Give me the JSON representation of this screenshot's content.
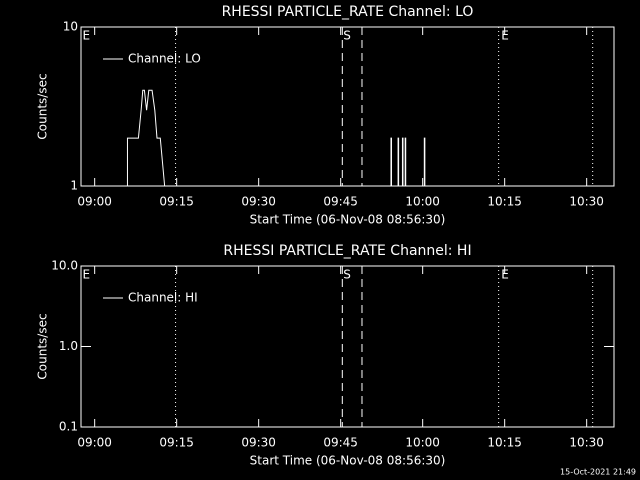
{
  "chart_data": [
    {
      "type": "line",
      "title": "RHESSI PARTICLE_RATE Channel: LO",
      "xlabel": "Start Time (06-Nov-08 08:56:30)",
      "ylabel": "Counts/sec",
      "xlim": [
        537.5,
        635
      ],
      "xticks": [
        {
          "value": 540,
          "label": "09:00"
        },
        {
          "value": 555,
          "label": "09:15"
        },
        {
          "value": 570,
          "label": "09:30"
        },
        {
          "value": 585,
          "label": "09:45"
        },
        {
          "value": 600,
          "label": "10:00"
        },
        {
          "value": 615,
          "label": "10:15"
        },
        {
          "value": 630,
          "label": "10:30"
        }
      ],
      "ylim": [
        1,
        10
      ],
      "yticks": [
        1,
        10
      ],
      "log_y": true,
      "legend": "top-left",
      "series": [
        {
          "name": "Channel: LO",
          "color": "#ffffff",
          "x": [
            537.5,
            546.0,
            546.0,
            548.0,
            548.5,
            548.8,
            549.1,
            549.5,
            549.9,
            550.5,
            551.0,
            551.4,
            552.0,
            552.8,
            594.2,
            594.2,
            594.3,
            594.3,
            595.5,
            595.5,
            595.6,
            595.6,
            596.3,
            596.3,
            596.4,
            596.4,
            596.8,
            596.8,
            596.9,
            596.9,
            600.3,
            600.3,
            600.4,
            600.4,
            635
          ],
          "values": [
            1,
            1,
            2,
            2,
            3,
            4,
            4,
            3,
            4,
            4,
            3,
            2,
            2,
            1,
            1,
            2,
            2,
            1,
            1,
            2,
            2,
            1,
            1,
            2,
            2,
            1,
            1,
            2,
            2,
            1,
            1,
            2,
            2,
            1,
            1
          ]
        }
      ],
      "markers": [
        {
          "x": 554.8,
          "style": "dotted"
        },
        {
          "x": 585.3,
          "style": "dashed"
        },
        {
          "x": 588.9,
          "style": "dashed"
        },
        {
          "x": 613.9,
          "style": "dotted"
        },
        {
          "x": 631.1,
          "style": "dotted"
        }
      ],
      "annotations": [
        {
          "text": "E",
          "x": 537.6
        },
        {
          "text": "S",
          "x": 585.3
        },
        {
          "text": "E",
          "x": 614.2
        }
      ]
    },
    {
      "type": "line",
      "title": "RHESSI PARTICLE_RATE Channel: HI",
      "xlabel": "Start Time (06-Nov-08 08:56:30)",
      "ylabel": "Counts/sec",
      "xlim": [
        537.5,
        635
      ],
      "xticks": [
        {
          "value": 540,
          "label": "09:00"
        },
        {
          "value": 555,
          "label": "09:15"
        },
        {
          "value": 570,
          "label": "09:30"
        },
        {
          "value": 585,
          "label": "09:45"
        },
        {
          "value": 600,
          "label": "10:00"
        },
        {
          "value": 615,
          "label": "10:15"
        },
        {
          "value": 630,
          "label": "10:30"
        }
      ],
      "ylim": [
        0.1,
        10
      ],
      "yticks": [
        0.1,
        {
          "value": 1,
          "label": "1.0"
        },
        {
          "value": 10,
          "label": "10.0"
        }
      ],
      "log_y": true,
      "legend": "top-left",
      "series": [
        {
          "name": "Channel: HI",
          "color": "#ffffff",
          "x": [],
          "values": []
        }
      ],
      "markers": [
        {
          "x": 554.8,
          "style": "dotted"
        },
        {
          "x": 585.3,
          "style": "dashed"
        },
        {
          "x": 588.9,
          "style": "dashed"
        },
        {
          "x": 613.9,
          "style": "dotted"
        },
        {
          "x": 631.1,
          "style": "dotted"
        }
      ],
      "annotations": [
        {
          "text": "E",
          "x": 537.6
        },
        {
          "text": "S",
          "x": 585.3
        },
        {
          "text": "E",
          "x": 614.2
        }
      ]
    }
  ],
  "footer": "15-Oct-2021 21:49"
}
